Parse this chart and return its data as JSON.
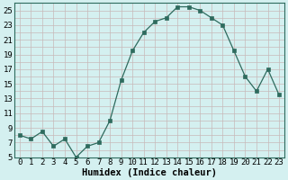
{
  "x": [
    0,
    1,
    2,
    3,
    4,
    5,
    6,
    7,
    8,
    9,
    10,
    11,
    12,
    13,
    14,
    15,
    16,
    17,
    18,
    19,
    20,
    21,
    22,
    23
  ],
  "y": [
    8,
    7.5,
    8.5,
    6.5,
    7.5,
    5,
    6.5,
    7,
    10,
    15.5,
    19.5,
    22,
    23.5,
    24,
    25.5,
    25.5,
    25,
    24,
    23,
    19.5,
    16,
    14,
    17,
    13.5
  ],
  "xlabel": "Humidex (Indice chaleur)",
  "ylim": [
    5,
    26
  ],
  "xlim": [
    -0.5,
    23.5
  ],
  "yticks": [
    5,
    7,
    9,
    11,
    13,
    15,
    17,
    19,
    21,
    23,
    25
  ],
  "xticks": [
    0,
    1,
    2,
    3,
    4,
    5,
    6,
    7,
    8,
    9,
    10,
    11,
    12,
    13,
    14,
    15,
    16,
    17,
    18,
    19,
    20,
    21,
    22,
    23
  ],
  "line_color": "#2e6b5e",
  "marker_color": "#2e6b5e",
  "bg_color": "#d4f0f0",
  "grid_major_color": "#c8b8b8",
  "grid_minor_color": "#c8b8b8",
  "xlabel_fontsize": 7.5,
  "tick_fontsize": 6.5
}
